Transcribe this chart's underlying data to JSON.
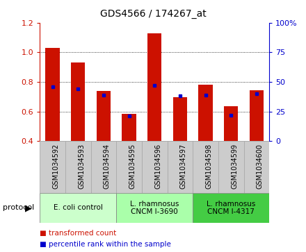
{
  "title": "GDS4566 / 174267_at",
  "samples": [
    "GSM1034592",
    "GSM1034593",
    "GSM1034594",
    "GSM1034595",
    "GSM1034596",
    "GSM1034597",
    "GSM1034598",
    "GSM1034599",
    "GSM1034600"
  ],
  "transformed_counts": [
    1.03,
    0.93,
    0.74,
    0.585,
    1.13,
    0.695,
    0.78,
    0.635,
    0.745
  ],
  "percentile_ranks": [
    46,
    44,
    39,
    21,
    47,
    38,
    39,
    22,
    40
  ],
  "bar_bottom": 0.4,
  "ylim": [
    0.4,
    1.2
  ],
  "y2lim": [
    0,
    100
  ],
  "yticks": [
    0.4,
    0.6,
    0.8,
    1.0,
    1.2
  ],
  "y2ticks": [
    0,
    25,
    50,
    75,
    100
  ],
  "bar_color": "#cc1100",
  "percentile_color": "#0000cc",
  "grid_color": "#000000",
  "groups": [
    {
      "label": "E. coli control",
      "start": 0,
      "end": 3,
      "color": "#ccffcc"
    },
    {
      "label": "L. rhamnosus\nCNCM I-3690",
      "start": 3,
      "end": 6,
      "color": "#aaffaa"
    },
    {
      "label": "L. rhamnosus\nCNCM I-4317",
      "start": 6,
      "end": 9,
      "color": "#44cc44"
    }
  ],
  "legend_items": [
    {
      "label": "transformed count",
      "color": "#cc1100"
    },
    {
      "label": "percentile rank within the sample",
      "color": "#0000cc"
    }
  ],
  "protocol_label": "protocol",
  "ylabel_left_color": "#cc1100",
  "ylabel_right_color": "#0000cc",
  "bar_width": 0.55,
  "tick_bg_color": "#cccccc",
  "tick_border_color": "#aaaaaa",
  "fig_width": 4.4,
  "fig_height": 3.63,
  "fig_dpi": 100
}
